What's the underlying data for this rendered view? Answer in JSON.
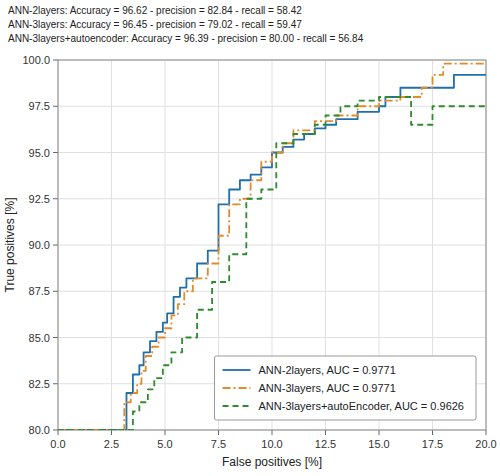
{
  "chart_data": {
    "type": "line",
    "xlabel": "False positives [%]",
    "ylabel": "True positives [%]",
    "xlim": [
      0.0,
      20.0
    ],
    "ylim": [
      80.0,
      100.0
    ],
    "xticks": [
      {
        "value": 0.0,
        "label": "0.0"
      },
      {
        "value": 2.5,
        "label": "2.5"
      },
      {
        "value": 5.0,
        "label": "5.0"
      },
      {
        "value": 7.5,
        "label": "7.5"
      },
      {
        "value": 10.0,
        "label": "10.0"
      },
      {
        "value": 12.5,
        "label": "12.5"
      },
      {
        "value": 15.0,
        "label": "15.0"
      },
      {
        "value": 17.5,
        "label": "17.5"
      },
      {
        "value": 20.0,
        "label": "20.0"
      }
    ],
    "yticks": [
      {
        "value": 80.0,
        "label": "80.0"
      },
      {
        "value": 82.5,
        "label": "82.5"
      },
      {
        "value": 85.0,
        "label": "85.0"
      },
      {
        "value": 87.5,
        "label": "87.5"
      },
      {
        "value": 90.0,
        "label": "90.0"
      },
      {
        "value": 92.5,
        "label": "92.5"
      },
      {
        "value": 95.0,
        "label": "95.0"
      },
      {
        "value": 97.5,
        "label": "97.5"
      },
      {
        "value": 100.0,
        "label": "100.0"
      }
    ],
    "grid": true,
    "legend": "lower right",
    "annotations": [
      "ANN-2layers: Accuracy = 96.62 - precision = 82.84 - recall = 58.42",
      "ANN-3layers: Accuracy = 96.45 - precision = 79.02 - recall = 59.47",
      "ANN-3layers+autoencoder: Accuracy = 96.39 - precision = 80.00 - recall = 56.84"
    ],
    "series": [
      {
        "name": "ANN-2layers, AUC = 0.9771",
        "color": "#1f6fab",
        "line_style": "solid",
        "x": [
          0.0,
          3.2,
          3.2,
          3.5,
          3.5,
          3.8,
          3.8,
          4.0,
          4.0,
          4.3,
          4.3,
          4.6,
          4.6,
          4.9,
          4.9,
          5.1,
          5.1,
          5.4,
          5.4,
          5.7,
          5.7,
          6.0,
          6.0,
          6.5,
          6.5,
          7.0,
          7.0,
          7.5,
          7.5,
          8.0,
          8.0,
          8.5,
          8.5,
          9.0,
          9.0,
          9.5,
          9.5,
          10.0,
          10.0,
          10.5,
          10.5,
          11.0,
          11.0,
          11.5,
          11.5,
          12.0,
          12.0,
          12.5,
          12.5,
          13.0,
          13.0,
          14.0,
          14.0,
          15.0,
          15.0,
          15.3,
          15.3,
          16.0,
          16.0,
          18.5,
          18.5,
          20.0
        ],
        "values": [
          80.0,
          80.0,
          82.0,
          82.0,
          83.0,
          83.0,
          83.5,
          83.5,
          84.2,
          84.2,
          84.8,
          84.8,
          85.3,
          85.3,
          85.8,
          85.8,
          86.3,
          86.3,
          87.2,
          87.2,
          87.7,
          87.7,
          88.2,
          88.2,
          89.0,
          89.0,
          89.7,
          89.7,
          92.2,
          92.2,
          93.0,
          93.0,
          93.5,
          93.5,
          93.8,
          93.8,
          94.2,
          94.2,
          95.0,
          95.0,
          95.3,
          95.3,
          95.7,
          95.7,
          96.0,
          96.0,
          96.3,
          96.3,
          96.5,
          96.5,
          96.8,
          96.8,
          97.2,
          97.2,
          97.5,
          97.5,
          98.0,
          98.0,
          98.5,
          98.5,
          99.2,
          99.2
        ]
      },
      {
        "name": "ANN-3layers, AUC = 0.9771",
        "color": "#e08c2e",
        "line_style": "dashdot",
        "x": [
          0.0,
          3.1,
          3.1,
          3.4,
          3.4,
          3.7,
          3.7,
          3.9,
          3.9,
          4.1,
          4.1,
          4.4,
          4.4,
          4.7,
          4.7,
          5.0,
          5.0,
          5.3,
          5.3,
          5.6,
          5.6,
          5.9,
          5.9,
          6.3,
          6.3,
          7.0,
          7.0,
          7.5,
          7.5,
          8.0,
          8.0,
          8.5,
          8.5,
          9.0,
          9.0,
          9.5,
          9.5,
          10.0,
          10.0,
          10.5,
          10.5,
          11.0,
          11.0,
          12.0,
          12.0,
          13.0,
          13.0,
          14.0,
          14.0,
          15.0,
          15.0,
          16.0,
          16.0,
          17.0,
          17.0,
          17.5,
          17.5,
          18.0,
          18.0,
          20.0
        ],
        "values": [
          80.0,
          80.0,
          81.5,
          81.5,
          82.0,
          82.0,
          82.5,
          82.5,
          83.2,
          83.2,
          84.0,
          84.0,
          84.5,
          84.5,
          85.0,
          85.0,
          85.5,
          85.5,
          86.2,
          86.2,
          86.8,
          86.8,
          87.5,
          87.5,
          88.2,
          88.2,
          89.0,
          89.0,
          90.5,
          90.5,
          92.2,
          92.2,
          92.5,
          92.5,
          93.5,
          93.5,
          94.5,
          94.5,
          95.0,
          95.0,
          95.5,
          95.5,
          96.2,
          96.2,
          96.7,
          96.7,
          97.0,
          97.0,
          97.5,
          97.5,
          97.8,
          97.8,
          98.0,
          98.0,
          98.5,
          98.5,
          99.2,
          99.2,
          99.8,
          99.8
        ]
      },
      {
        "name": "ANN-3layers+autoEncoder, AUC = 0.9626",
        "color": "#2e8b2e",
        "line_style": "dashed",
        "x": [
          0.0,
          3.5,
          3.5,
          3.8,
          3.8,
          4.2,
          4.2,
          4.5,
          4.5,
          4.9,
          4.9,
          5.3,
          5.3,
          5.8,
          5.8,
          6.5,
          6.5,
          7.2,
          7.2,
          8.0,
          8.0,
          8.8,
          8.8,
          9.5,
          9.5,
          10.2,
          10.2,
          11.0,
          11.0,
          12.0,
          12.0,
          12.5,
          12.5,
          13.2,
          13.2,
          14.0,
          14.0,
          15.0,
          15.0,
          16.5,
          16.5,
          17.5,
          17.5,
          18.0,
          18.0,
          20.0
        ],
        "values": [
          80.0,
          80.0,
          81.0,
          81.0,
          81.5,
          81.5,
          82.2,
          82.2,
          82.8,
          82.8,
          83.5,
          83.5,
          84.2,
          84.2,
          85.0,
          85.0,
          86.5,
          86.5,
          88.0,
          88.0,
          89.5,
          89.5,
          92.5,
          92.5,
          93.0,
          93.0,
          95.5,
          95.5,
          96.0,
          96.0,
          96.5,
          96.5,
          97.0,
          97.0,
          97.5,
          97.5,
          97.8,
          97.8,
          98.0,
          98.0,
          96.5,
          96.5,
          97.5,
          97.5,
          97.5,
          97.5
        ]
      }
    ]
  }
}
